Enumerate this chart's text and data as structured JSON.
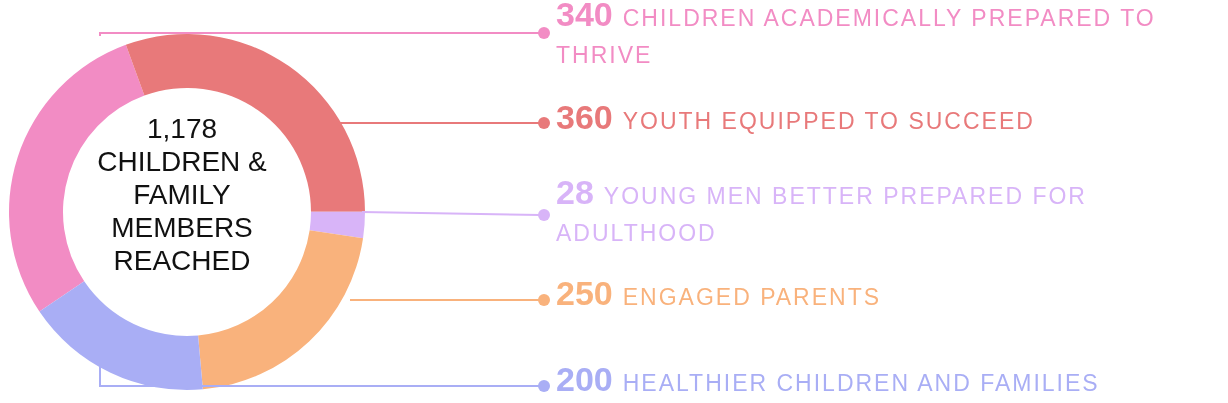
{
  "chart_data": {
    "type": "donut",
    "title": "1,178 CHILDREN & FAMILY MEMBERS REACHED",
    "categories": [
      "CHILDREN ACADEMICALLY PREPARED TO THRIVE",
      "YOUTH EQUIPPED TO SUCCEED",
      "YOUNG MEN BETTER PREPARED FOR ADULTHOOD",
      "ENGAGED PARENTS",
      "HEALTHIER CHILDREN AND FAMILIES"
    ],
    "values": [
      340,
      360,
      28,
      250,
      200
    ],
    "colors": [
      "#f28cc4",
      "#e8797a",
      "#d8b4f8",
      "#f9b27c",
      "#a9aef5"
    ],
    "data_labels": true
  }
}
